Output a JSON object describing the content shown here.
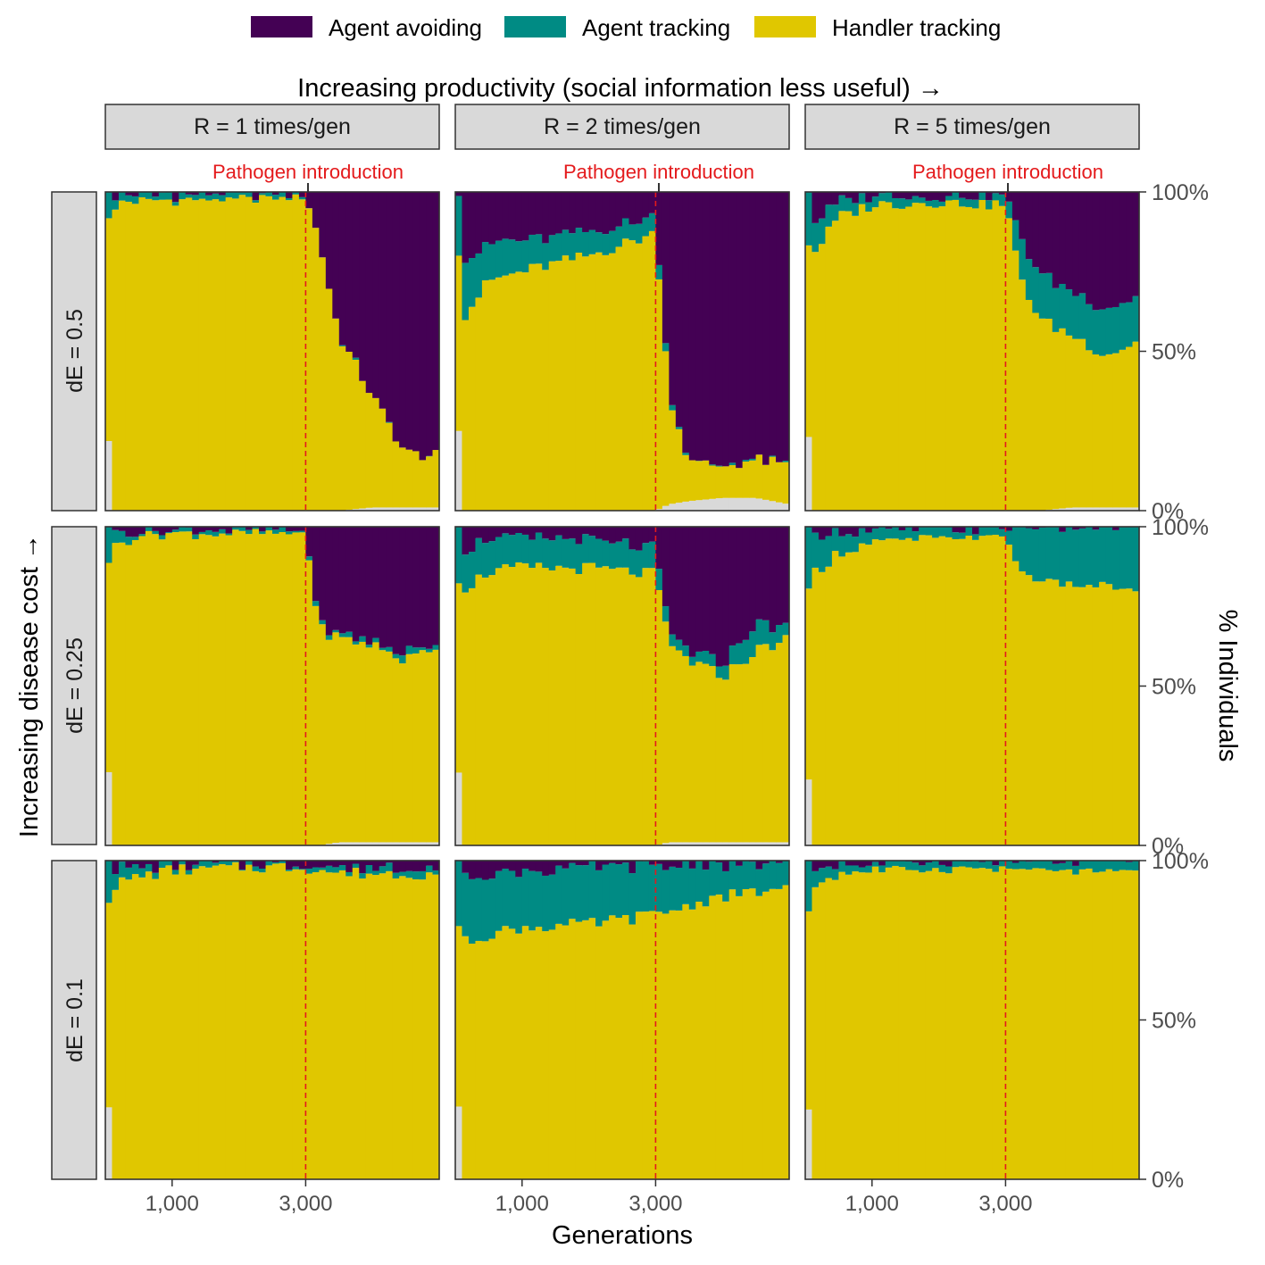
{
  "legend": {
    "items": [
      {
        "label": "Agent avoiding",
        "color": "#440154"
      },
      {
        "label": "Agent tracking",
        "color": "#008B84"
      },
      {
        "label": "Handler tracking",
        "color": "#E0C700"
      }
    ]
  },
  "colors": {
    "other": "#D9D9D9",
    "strip_fill": "#D9D9D9",
    "pathogen_line": "#E41A1C",
    "axis": "#333333"
  },
  "chart_data": {
    "type": "area",
    "chart_style": "stacked 100% histogram, faceted 3x3",
    "title": "Increasing productivity (social information less useful) →",
    "row_title": "Increasing disease cost →",
    "xlabel": "Generations",
    "ylabel": "% Individuals",
    "xlim": [
      0,
      5000
    ],
    "ylim": [
      0,
      1
    ],
    "x_ticks": [
      1000,
      3000
    ],
    "x_tick_labels": [
      "1,000",
      "3,000"
    ],
    "y_ticks": [
      0,
      0.5,
      1
    ],
    "y_tick_labels": [
      "0%",
      "50%",
      "100%"
    ],
    "pathogen_intro": 3000,
    "pathogen_label": "Pathogen introduction",
    "col_strips": [
      "R = 1 times/gen",
      "R = 2 times/gen",
      "R = 5 times/gen"
    ],
    "row_strips": [
      "dE = 0.5",
      "dE = 0.25",
      "dE = 0.1"
    ],
    "grid": false,
    "legend_position": "top",
    "series_order_bottom_to_top": [
      "other",
      "Handler tracking",
      "Agent tracking",
      "Agent avoiding"
    ],
    "panels": [
      {
        "row": 0,
        "col": 0,
        "x": [
          0,
          100,
          200,
          3000,
          3200,
          3500,
          4000,
          4500,
          5000
        ],
        "handler": [
          0.7,
          0.9,
          0.97,
          0.99,
          0.85,
          0.55,
          0.35,
          0.17,
          0.16
        ],
        "agent_tracking": [
          0.15,
          0.05,
          0.02,
          0.01,
          0.0,
          0.0,
          0.0,
          0.0,
          0.0
        ],
        "other": [
          0.0,
          0.0,
          0.0,
          0.0,
          0.0,
          0.0,
          0.01,
          0.01,
          0.01
        ]
      },
      {
        "row": 0,
        "col": 1,
        "x": [
          0,
          100,
          500,
          1000,
          2000,
          3000,
          3200,
          3500,
          4000,
          4500,
          5000
        ],
        "handler": [
          0.5,
          0.6,
          0.72,
          0.75,
          0.8,
          0.87,
          0.35,
          0.12,
          0.1,
          0.12,
          0.12
        ],
        "agent_tracking": [
          0.2,
          0.18,
          0.12,
          0.1,
          0.07,
          0.05,
          0.02,
          0.0,
          0.0,
          0.0,
          0.0
        ],
        "other": [
          0.0,
          0.0,
          0.0,
          0.0,
          0.0,
          0.0,
          0.02,
          0.03,
          0.04,
          0.04,
          0.02
        ]
      },
      {
        "row": 0,
        "col": 2,
        "x": [
          0,
          100,
          500,
          1000,
          2000,
          3000,
          3200,
          3500,
          4000,
          4500,
          5000
        ],
        "handler": [
          0.5,
          0.8,
          0.92,
          0.96,
          0.97,
          0.96,
          0.75,
          0.6,
          0.54,
          0.48,
          0.52
        ],
        "agent_tracking": [
          0.25,
          0.1,
          0.05,
          0.03,
          0.02,
          0.03,
          0.12,
          0.14,
          0.14,
          0.14,
          0.14
        ],
        "other": [
          0.0,
          0.0,
          0.0,
          0.0,
          0.0,
          0.0,
          0.0,
          0.0,
          0.01,
          0.01,
          0.01
        ]
      },
      {
        "row": 1,
        "col": 0,
        "x": [
          0,
          100,
          500,
          3000,
          3200,
          3500,
          4000,
          4500,
          5000
        ],
        "handler": [
          0.5,
          0.93,
          0.98,
          0.98,
          0.68,
          0.64,
          0.62,
          0.57,
          0.62
        ],
        "agent_tracking": [
          0.2,
          0.04,
          0.01,
          0.01,
          0.01,
          0.01,
          0.01,
          0.02,
          0.01
        ],
        "other": [
          0.0,
          0.0,
          0.0,
          0.0,
          0.0,
          0.01,
          0.01,
          0.01,
          0.01
        ]
      },
      {
        "row": 1,
        "col": 1,
        "x": [
          0,
          100,
          500,
          1000,
          2000,
          3000,
          3200,
          3500,
          4000,
          4500,
          5000
        ],
        "handler": [
          0.5,
          0.8,
          0.86,
          0.87,
          0.87,
          0.85,
          0.62,
          0.57,
          0.52,
          0.6,
          0.64
        ],
        "agent_tracking": [
          0.25,
          0.13,
          0.1,
          0.09,
          0.09,
          0.08,
          0.03,
          0.03,
          0.04,
          0.08,
          0.04
        ],
        "other": [
          0.0,
          0.0,
          0.0,
          0.0,
          0.0,
          0.0,
          0.01,
          0.01,
          0.01,
          0.01,
          0.01
        ]
      },
      {
        "row": 1,
        "col": 2,
        "x": [
          0,
          100,
          500,
          1000,
          2000,
          3000,
          3200,
          3500,
          4000,
          4500,
          5000
        ],
        "handler": [
          0.6,
          0.85,
          0.92,
          0.95,
          0.97,
          0.98,
          0.86,
          0.84,
          0.82,
          0.82,
          0.8
        ],
        "agent_tracking": [
          0.35,
          0.12,
          0.07,
          0.04,
          0.03,
          0.02,
          0.14,
          0.16,
          0.18,
          0.18,
          0.2
        ],
        "other": [
          0.0,
          0.0,
          0.0,
          0.0,
          0.0,
          0.0,
          0.0,
          0.0,
          0.0,
          0.0,
          0.0
        ]
      },
      {
        "row": 2,
        "col": 0,
        "x": [
          0,
          100,
          500,
          1000,
          2000,
          3000,
          3500,
          4000,
          5000
        ],
        "handler": [
          0.5,
          0.92,
          0.95,
          0.97,
          0.98,
          0.98,
          0.96,
          0.96,
          0.96
        ],
        "agent_tracking": [
          0.25,
          0.05,
          0.03,
          0.02,
          0.01,
          0.01,
          0.02,
          0.02,
          0.02
        ],
        "other": [
          0.0,
          0.0,
          0.0,
          0.0,
          0.0,
          0.0,
          0.0,
          0.0,
          0.0
        ]
      },
      {
        "row": 2,
        "col": 1,
        "x": [
          0,
          100,
          500,
          1000,
          2000,
          3000,
          3500,
          4000,
          4500,
          5000
        ],
        "handler": [
          0.5,
          0.74,
          0.77,
          0.79,
          0.8,
          0.83,
          0.86,
          0.89,
          0.9,
          0.92
        ],
        "agent_tracking": [
          0.25,
          0.2,
          0.19,
          0.18,
          0.18,
          0.15,
          0.13,
          0.1,
          0.09,
          0.08
        ],
        "other": [
          0.0,
          0.0,
          0.0,
          0.0,
          0.0,
          0.0,
          0.0,
          0.0,
          0.0,
          0.0
        ]
      },
      {
        "row": 2,
        "col": 2,
        "x": [
          0,
          100,
          500,
          1000,
          2000,
          3000,
          4000,
          5000
        ],
        "handler": [
          0.5,
          0.92,
          0.96,
          0.97,
          0.98,
          0.98,
          0.97,
          0.97
        ],
        "agent_tracking": [
          0.3,
          0.06,
          0.03,
          0.02,
          0.02,
          0.02,
          0.03,
          0.03
        ],
        "other": [
          0.0,
          0.0,
          0.0,
          0.0,
          0.0,
          0.0,
          0.0,
          0.0
        ]
      }
    ]
  }
}
